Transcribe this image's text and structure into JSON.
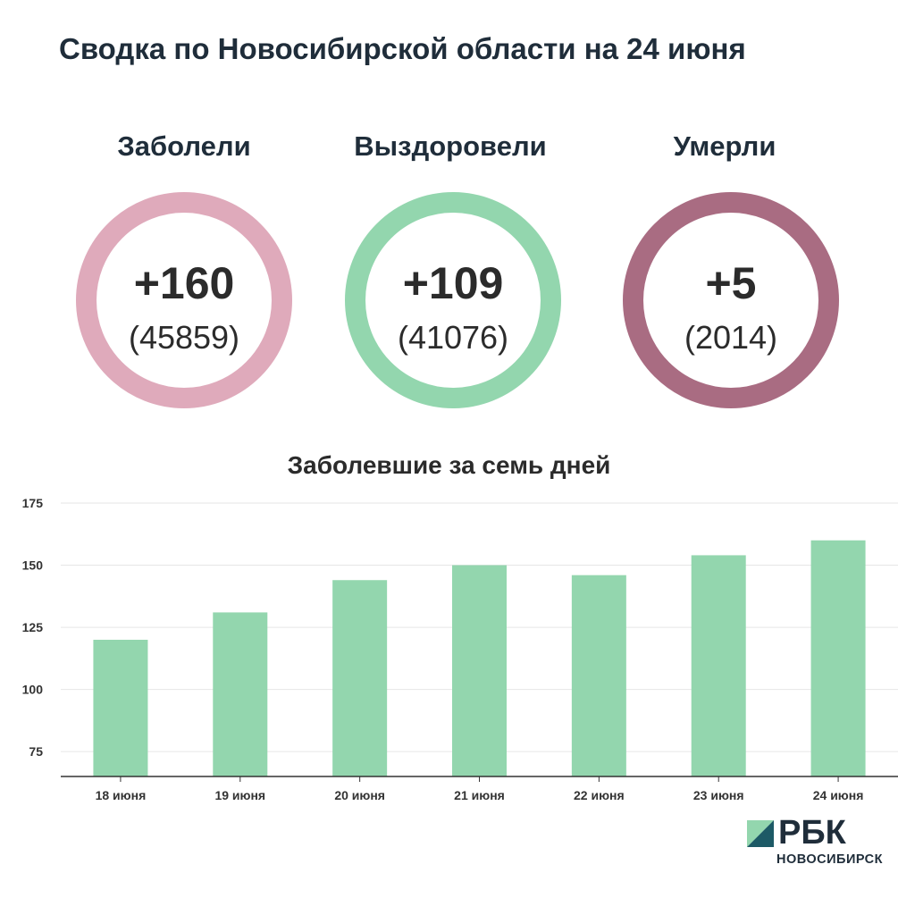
{
  "title": "Сводка по Новосибирской области на 24 июня",
  "stats": [
    {
      "label": "Заболели",
      "delta": "+160",
      "total": "(45859)",
      "color": "#dfaabb"
    },
    {
      "label": "Выздоровели",
      "delta": "+109",
      "total": "(41076)",
      "color": "#93d6ae"
    },
    {
      "label": "Умерли",
      "delta": "+5",
      "total": "(2014)",
      "color": "#a96c82"
    }
  ],
  "chart_data": {
    "type": "bar",
    "title": "Заболевшие за семь дней",
    "categories": [
      "18 июня",
      "19 июня",
      "20 июня",
      "21 июня",
      "22 июня",
      "23 июня",
      "24 июня"
    ],
    "values": [
      120,
      131,
      144,
      150,
      146,
      154,
      160
    ],
    "ylim": [
      65,
      175
    ],
    "yticks": [
      75,
      100,
      125,
      150,
      175
    ],
    "grid": true,
    "bar_color": "#93d6ae",
    "xlabel": "",
    "ylabel": ""
  },
  "logo": {
    "name": "РБК",
    "region": "НОВОСИБИРСК",
    "mark_dark": "#1d5a66",
    "mark_light": "#93d6ae"
  }
}
